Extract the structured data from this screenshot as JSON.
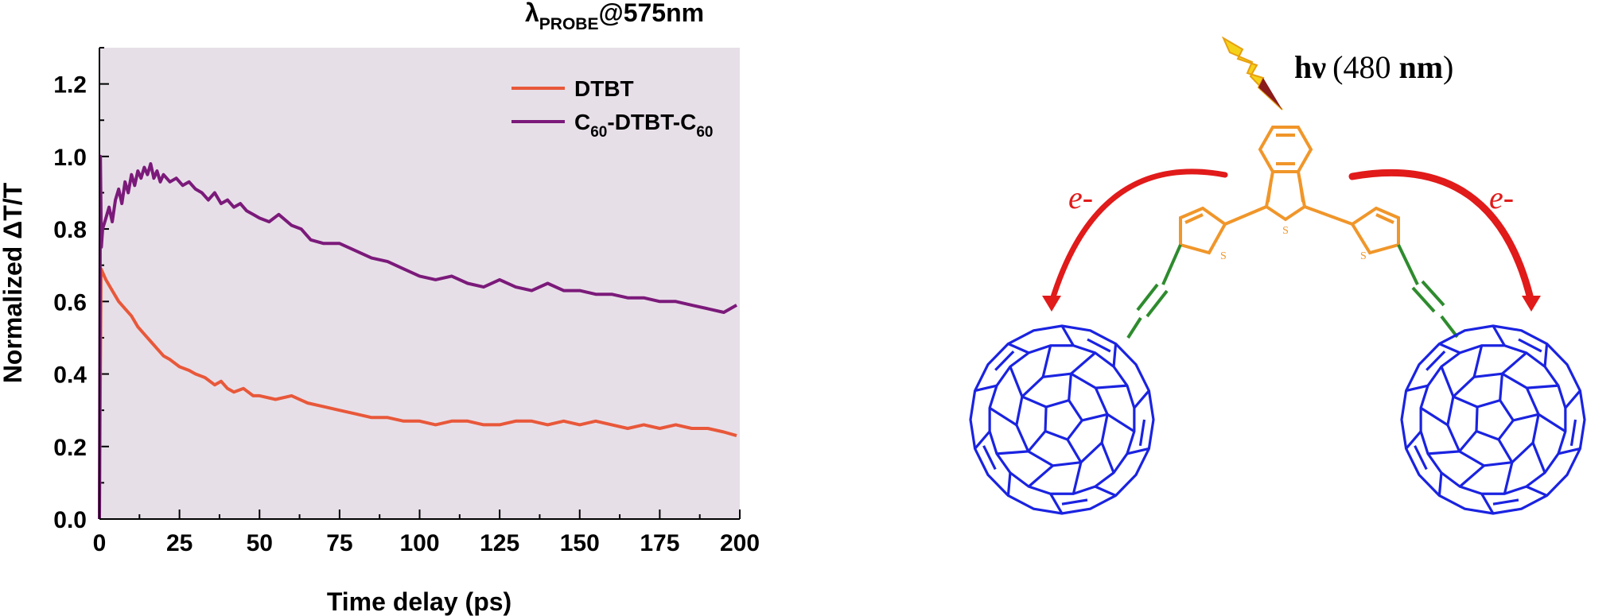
{
  "chart_data": {
    "type": "line",
    "title_prefix": "λ",
    "title_sub": "PROBE",
    "title_suffix": "@575nm",
    "xlabel": "Time delay (ps)",
    "ylabel": "Normalized ΔT/T",
    "xlim": [
      0,
      200
    ],
    "ylim": [
      0,
      1.3
    ],
    "xticks": [
      "0",
      "25",
      "50",
      "75",
      "100",
      "125",
      "150",
      "175",
      "200"
    ],
    "yticks": [
      "0.0",
      "0.2",
      "0.4",
      "0.6",
      "0.8",
      "1.0",
      "1.2"
    ],
    "plot_background": "#e7dfe8",
    "legend_position": "top-right",
    "series": [
      {
        "name": "DTBT",
        "color": "#e8583a",
        "x": [
          0,
          0.5,
          2,
          4,
          6,
          8,
          10,
          12,
          14,
          16,
          18,
          20,
          22,
          25,
          28,
          30,
          33,
          36,
          38,
          40,
          42,
          45,
          48,
          50,
          55,
          60,
          65,
          70,
          75,
          80,
          85,
          90,
          95,
          100,
          105,
          110,
          115,
          120,
          125,
          130,
          135,
          140,
          145,
          150,
          155,
          160,
          165,
          170,
          175,
          180,
          185,
          190,
          195,
          199
        ],
        "values": [
          0.0,
          0.69,
          0.66,
          0.63,
          0.6,
          0.58,
          0.56,
          0.53,
          0.51,
          0.49,
          0.47,
          0.45,
          0.44,
          0.42,
          0.41,
          0.4,
          0.39,
          0.37,
          0.38,
          0.36,
          0.35,
          0.36,
          0.34,
          0.34,
          0.33,
          0.34,
          0.32,
          0.31,
          0.3,
          0.29,
          0.28,
          0.28,
          0.27,
          0.27,
          0.26,
          0.27,
          0.27,
          0.26,
          0.26,
          0.27,
          0.27,
          0.26,
          0.27,
          0.26,
          0.27,
          0.26,
          0.25,
          0.26,
          0.25,
          0.26,
          0.25,
          0.25,
          0.24,
          0.23
        ]
      },
      {
        "name": "C60-DTBT-C60",
        "color": "#7b1a7a",
        "x": [
          0,
          0.3,
          0.6,
          1,
          2,
          3,
          4,
          5,
          6,
          7,
          8,
          9,
          10,
          11,
          12,
          13,
          14,
          15,
          16,
          17,
          18,
          19,
          20,
          22,
          24,
          26,
          28,
          30,
          32,
          34,
          36,
          38,
          40,
          42,
          44,
          46,
          48,
          50,
          53,
          56,
          60,
          63,
          66,
          70,
          75,
          80,
          85,
          90,
          95,
          100,
          105,
          110,
          115,
          120,
          125,
          130,
          135,
          140,
          145,
          150,
          155,
          160,
          165,
          170,
          175,
          180,
          185,
          190,
          195,
          199
        ],
        "values": [
          0.0,
          1.0,
          0.75,
          0.8,
          0.83,
          0.86,
          0.82,
          0.88,
          0.91,
          0.87,
          0.93,
          0.9,
          0.95,
          0.92,
          0.96,
          0.94,
          0.97,
          0.95,
          0.98,
          0.94,
          0.96,
          0.93,
          0.95,
          0.93,
          0.94,
          0.92,
          0.93,
          0.91,
          0.9,
          0.88,
          0.9,
          0.87,
          0.88,
          0.86,
          0.87,
          0.85,
          0.84,
          0.83,
          0.82,
          0.84,
          0.81,
          0.8,
          0.77,
          0.76,
          0.76,
          0.74,
          0.72,
          0.71,
          0.69,
          0.67,
          0.66,
          0.67,
          0.65,
          0.64,
          0.66,
          0.64,
          0.63,
          0.65,
          0.63,
          0.63,
          0.62,
          0.62,
          0.61,
          0.61,
          0.6,
          0.6,
          0.59,
          0.58,
          0.57,
          0.59
        ]
      }
    ]
  },
  "scheme": {
    "light_label_main": "hν",
    "light_label_paren": "(480 ",
    "light_label_unit": "nm",
    "light_label_close": ")",
    "electron_label": "e-",
    "sulfur_label": "S",
    "colors": {
      "thiophene": "#f0962a",
      "alkyne": "#2e8b2e",
      "fullerene": "#1a23e0",
      "arrow": "#e11a1a",
      "bolt": "#f5d21a"
    }
  }
}
